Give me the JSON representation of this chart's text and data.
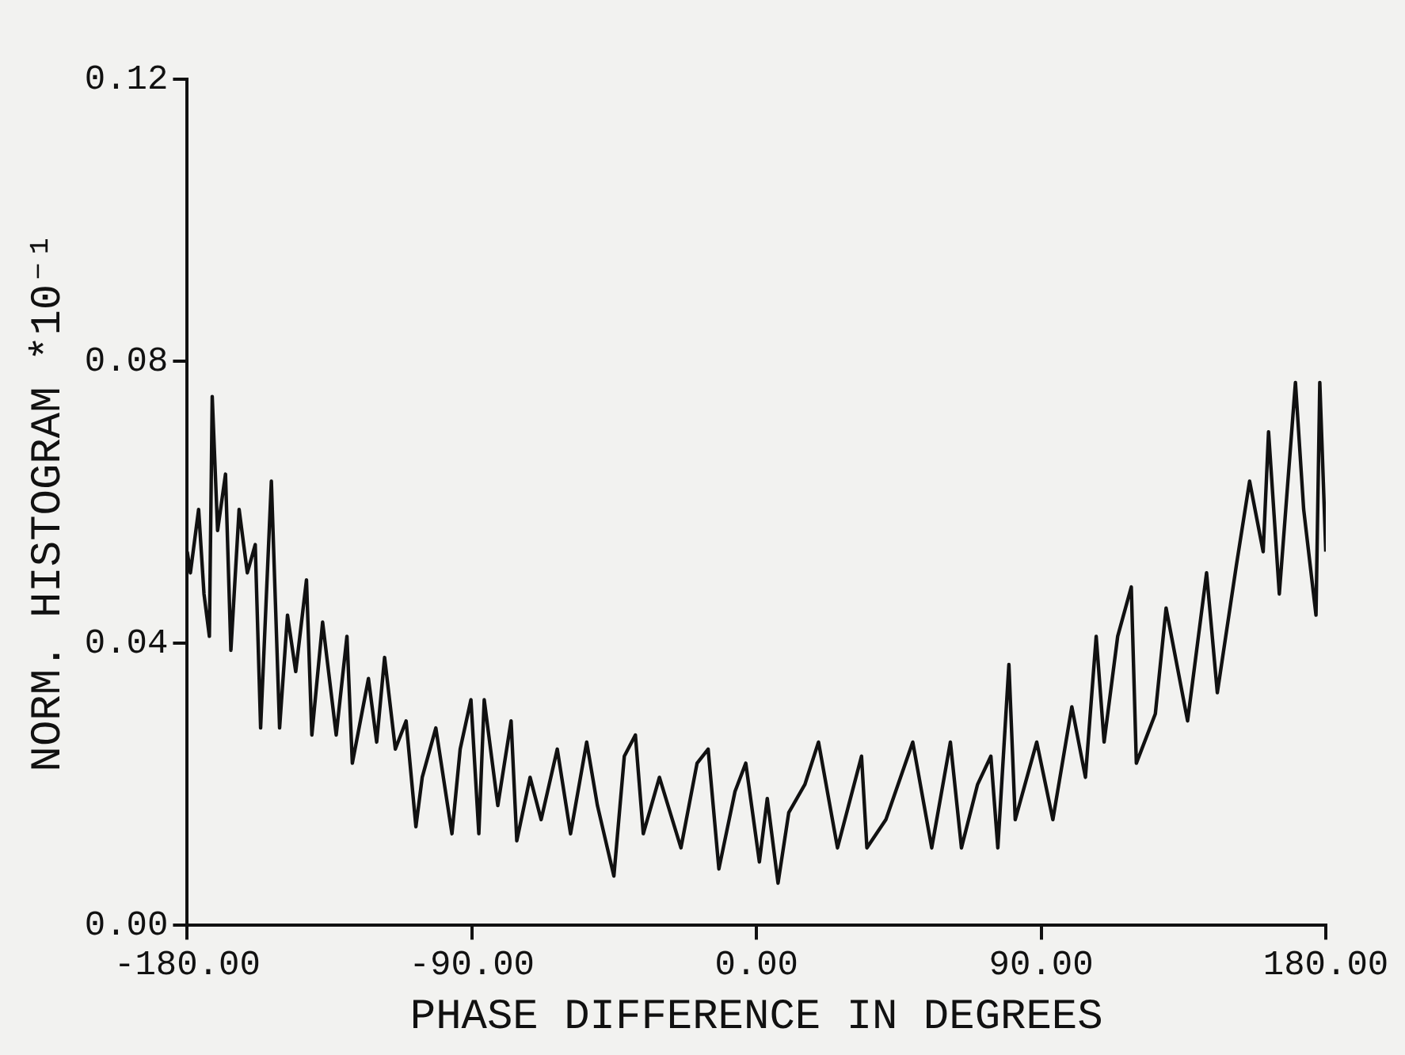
{
  "chart_data": {
    "type": "line",
    "xlabel": "PHASE DIFFERENCE IN DEGREES",
    "ylabel": "NORM. HISTOGRAM *10⁻¹",
    "xlim": [
      -180,
      180
    ],
    "ylim": [
      0,
      0.12
    ],
    "xticks": [
      {
        "value": -180,
        "label": "-180.00"
      },
      {
        "value": -90,
        "label": "-90.00"
      },
      {
        "value": 0,
        "label": "0.00"
      },
      {
        "value": 90,
        "label": "90.00"
      },
      {
        "value": 180,
        "label": "180.00"
      }
    ],
    "yticks": [
      {
        "value": 0,
        "label": "0.00"
      },
      {
        "value": 0.04,
        "label": "0.04"
      },
      {
        "value": 0.08,
        "label": "0.08"
      },
      {
        "value": 0.12,
        "label": "0.12"
      }
    ],
    "grid": false,
    "legend": false,
    "marker": "none",
    "line_style": "solid",
    "series": [
      {
        "color": "#111111",
        "x": [
          -180,
          -179,
          -176.4,
          -174.7,
          -173,
          -172.1,
          -170.4,
          -167.9,
          -166.2,
          -163.6,
          -161,
          -158.5,
          -156.8,
          -153.4,
          -150.8,
          -148.3,
          -145.7,
          -142.3,
          -140.6,
          -137.2,
          -132.9,
          -129.5,
          -127.8,
          -122.7,
          -120.1,
          -117.6,
          -114.2,
          -110.8,
          -107.7,
          -105.7,
          -101.4,
          -96.3,
          -93.7,
          -90.3,
          -87.8,
          -86.1,
          -81.8,
          -77.6,
          -75.8,
          -71.6,
          -68.1,
          -63,
          -58.8,
          -53.7,
          -50.3,
          -45.1,
          -41.8,
          -38.3,
          -35.8,
          -30.7,
          -23.9,
          -18.8,
          -15.3,
          -11.9,
          -6.8,
          -3.4,
          0.9,
          3.4,
          6.8,
          10.2,
          15.3,
          19.6,
          25.6,
          33.2,
          34.9,
          40.9,
          49.4,
          55.4,
          61.3,
          64.8,
          69.9,
          74.1,
          76.3,
          79.8,
          81.8,
          88.6,
          93.7,
          99.7,
          104,
          107.4,
          109.9,
          114.2,
          118.5,
          120.1,
          126.1,
          129.5,
          136.3,
          142.3,
          145.7,
          151.7,
          155.9,
          160.2,
          161.9,
          165.3,
          170.4,
          173,
          176.9,
          178.1,
          180
        ],
        "values": [
          0.053,
          0.05,
          0.059,
          0.047,
          0.041,
          0.075,
          0.056,
          0.064,
          0.039,
          0.059,
          0.05,
          0.054,
          0.028,
          0.063,
          0.028,
          0.044,
          0.036,
          0.049,
          0.027,
          0.043,
          0.027,
          0.041,
          0.023,
          0.035,
          0.026,
          0.038,
          0.025,
          0.029,
          0.014,
          0.021,
          0.028,
          0.013,
          0.025,
          0.032,
          0.013,
          0.032,
          0.017,
          0.029,
          0.012,
          0.021,
          0.015,
          0.025,
          0.013,
          0.026,
          0.017,
          0.007,
          0.024,
          0.027,
          0.013,
          0.021,
          0.011,
          0.023,
          0.025,
          0.008,
          0.019,
          0.023,
          0.009,
          0.018,
          0.006,
          0.016,
          0.02,
          0.026,
          0.011,
          0.024,
          0.011,
          0.015,
          0.026,
          0.011,
          0.026,
          0.011,
          0.02,
          0.024,
          0.011,
          0.037,
          0.015,
          0.026,
          0.015,
          0.031,
          0.021,
          0.041,
          0.026,
          0.041,
          0.048,
          0.023,
          0.03,
          0.045,
          0.029,
          0.05,
          0.033,
          0.051,
          0.063,
          0.053,
          0.07,
          0.047,
          0.077,
          0.059,
          0.044,
          0.077,
          0.053
        ]
      }
    ]
  }
}
